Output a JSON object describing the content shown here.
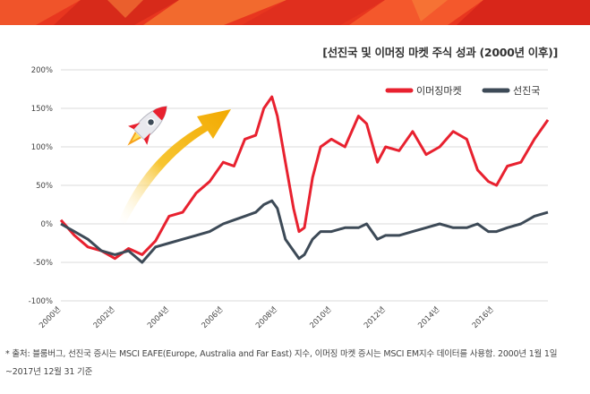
{
  "title": "[선진국 및 이머징 마켓 주식 성과 (2000년 이후)]",
  "footnote": "* 출처: 블룸버그, 선진국 증시는 MSCI EAFE(Europe, Australia and Far East) 지수, 이머징 마켓 증시는 MSCI EM지수 데이터를 사용함. 2000년 1월 1일~2017년 12월 31 기준",
  "colors": {
    "emerging": "#e8212f",
    "developed": "#3d4a57",
    "arrow": "#f5b500",
    "banner": "#e8361f"
  },
  "chart_data": {
    "type": "line",
    "x": [
      2000.0,
      2000.5,
      2001.0,
      2001.5,
      2002.0,
      2002.5,
      2003.0,
      2003.5,
      2004.0,
      2004.5,
      2005.0,
      2005.5,
      2006.0,
      2006.4,
      2006.8,
      2007.2,
      2007.5,
      2007.8,
      2008.0,
      2008.3,
      2008.6,
      2008.8,
      2009.0,
      2009.3,
      2009.6,
      2010.0,
      2010.5,
      2011.0,
      2011.3,
      2011.7,
      2012.0,
      2012.5,
      2013.0,
      2013.5,
      2014.0,
      2014.5,
      2015.0,
      2015.4,
      2015.8,
      2016.1,
      2016.5,
      2017.0,
      2017.5,
      2018.0
    ],
    "series": [
      {
        "name": "이머징마켓",
        "values": [
          5,
          -15,
          -30,
          -35,
          -45,
          -32,
          -40,
          -22,
          10,
          15,
          40,
          55,
          80,
          75,
          110,
          115,
          150,
          165,
          140,
          80,
          20,
          -10,
          -5,
          60,
          100,
          110,
          100,
          140,
          130,
          80,
          100,
          95,
          120,
          90,
          100,
          120,
          110,
          70,
          55,
          50,
          75,
          80,
          110,
          135
        ]
      },
      {
        "name": "선진국",
        "values": [
          0,
          -10,
          -20,
          -35,
          -40,
          -35,
          -50,
          -30,
          -25,
          -20,
          -15,
          -10,
          0,
          5,
          10,
          15,
          25,
          30,
          20,
          -20,
          -35,
          -45,
          -40,
          -20,
          -10,
          -10,
          -5,
          -5,
          0,
          -20,
          -15,
          -15,
          -10,
          -5,
          0,
          -5,
          -5,
          0,
          -10,
          -10,
          -5,
          0,
          10,
          15
        ]
      }
    ],
    "ylim": [
      -100,
      200
    ],
    "yticks": [
      "200%",
      "150%",
      "100%",
      "50%",
      "0%",
      "-50%",
      "-100%"
    ],
    "xticks": [
      "2000년",
      "2002년",
      "2004년",
      "2006년",
      "2008년",
      "2010년",
      "2012년",
      "2014년",
      "2016년"
    ],
    "xrange": [
      2000,
      2018
    ],
    "grid": "horizontal",
    "legend": "top-right",
    "legend_entries": [
      "이머징마켓",
      "선진국"
    ]
  }
}
